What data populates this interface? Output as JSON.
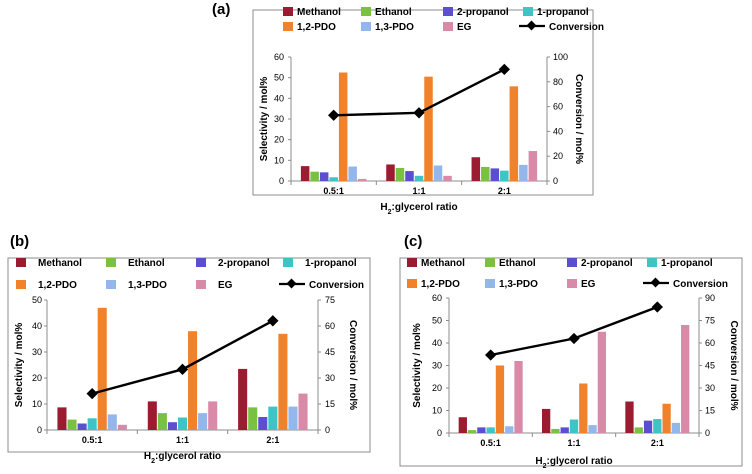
{
  "chart_data": [
    {
      "panel": "(a)",
      "type": "bar",
      "categories": [
        "0.5:1",
        "1:1",
        "2:1"
      ],
      "series": [
        {
          "name": "Methanol",
          "color": "#9b1b30",
          "values": [
            7.2,
            8.0,
            11.5
          ]
        },
        {
          "name": "Ethanol",
          "color": "#7ac142",
          "values": [
            4.5,
            6.3,
            6.8
          ]
        },
        {
          "name": "2-propanol",
          "color": "#5b4fcf",
          "values": [
            4.2,
            4.8,
            6.1
          ]
        },
        {
          "name": "1-propanol",
          "color": "#3ec4c4",
          "values": [
            1.8,
            2.5,
            5.0
          ]
        },
        {
          "name": "1,2-PDO",
          "color": "#f0822c",
          "values": [
            52.5,
            50.5,
            45.8
          ]
        },
        {
          "name": "1,3-PDO",
          "color": "#93b7ea",
          "values": [
            7.0,
            7.5,
            7.8
          ]
        },
        {
          "name": "EG",
          "color": "#d98aa8",
          "values": [
            1.0,
            2.5,
            14.5
          ]
        }
      ],
      "line": {
        "name": "Conversion",
        "axis": "right",
        "values": [
          53,
          55,
          90
        ]
      },
      "ylabel": "Selectivity / mol%",
      "y2label": "Conversion / mol%",
      "xlabel": "H2:glycerol ratio",
      "ylim": [
        0,
        60
      ],
      "y2lim": [
        0,
        100
      ],
      "yticks": [
        "0",
        "10",
        "20",
        "30",
        "40",
        "50",
        "60"
      ],
      "y2ticks": [
        "0",
        "20",
        "40",
        "60",
        "80",
        "100"
      ],
      "legend_position": "top"
    },
    {
      "panel": "(b)",
      "type": "bar",
      "categories": [
        "0.5:1",
        "1:1",
        "2:1"
      ],
      "series": [
        {
          "name": "Methanol",
          "color": "#9b1b30",
          "values": [
            8.7,
            11.0,
            23.5
          ]
        },
        {
          "name": "Ethanol",
          "color": "#7ac142",
          "values": [
            4.0,
            6.5,
            8.7
          ]
        },
        {
          "name": "2-propanol",
          "color": "#5b4fcf",
          "values": [
            2.5,
            3.0,
            5.0
          ]
        },
        {
          "name": "1-propanol",
          "color": "#3ec4c4",
          "values": [
            4.5,
            4.8,
            9.0
          ]
        },
        {
          "name": "1,2-PDO",
          "color": "#f0822c",
          "values": [
            47.0,
            38.0,
            37.0
          ]
        },
        {
          "name": "1,3-PDO",
          "color": "#93b7ea",
          "values": [
            6.0,
            6.5,
            9.0
          ]
        },
        {
          "name": "EG",
          "color": "#d98aa8",
          "values": [
            2.0,
            11.0,
            14.0
          ]
        }
      ],
      "line": {
        "name": "Conversion",
        "axis": "right",
        "values": [
          21,
          35,
          63
        ]
      },
      "ylabel": "Selectivity / mol%",
      "y2label": "Conversion / mol%",
      "xlabel": "H2:glycerol ratio",
      "ylim": [
        0,
        50
      ],
      "y2lim": [
        0,
        75
      ],
      "yticks": [
        "0",
        "10",
        "20",
        "30",
        "40",
        "50"
      ],
      "y2ticks": [
        "0",
        "15",
        "30",
        "45",
        "60",
        "75"
      ],
      "legend_position": "top"
    },
    {
      "panel": "(c)",
      "type": "bar",
      "categories": [
        "0.5:1",
        "1:1",
        "2:1"
      ],
      "series": [
        {
          "name": "Methanol",
          "color": "#9b1b30",
          "values": [
            7.0,
            10.7,
            14.0
          ]
        },
        {
          "name": "Ethanol",
          "color": "#7ac142",
          "values": [
            1.3,
            1.8,
            2.5
          ]
        },
        {
          "name": "2-propanol",
          "color": "#5b4fcf",
          "values": [
            2.5,
            2.5,
            5.5
          ]
        },
        {
          "name": "1-propanol",
          "color": "#3ec4c4",
          "values": [
            2.5,
            6.0,
            6.2
          ]
        },
        {
          "name": "1,2-PDO",
          "color": "#f0822c",
          "values": [
            30.0,
            22.0,
            13.0
          ]
        },
        {
          "name": "1,3-PDO",
          "color": "#93b7ea",
          "values": [
            3.0,
            3.5,
            4.5
          ]
        },
        {
          "name": "EG",
          "color": "#d98aa8",
          "values": [
            32.0,
            45.0,
            48.0
          ]
        }
      ],
      "line": {
        "name": "Conversion",
        "axis": "right",
        "values": [
          52,
          63,
          84
        ]
      },
      "ylabel": "Selectivity / mol%",
      "y2label": "Conversion / mol%",
      "xlabel": "H2:glycerol ratio",
      "ylim": [
        0,
        60
      ],
      "y2lim": [
        0,
        90
      ],
      "yticks": [
        "0",
        "10",
        "20",
        "30",
        "40",
        "50",
        "60"
      ],
      "y2ticks": [
        "0",
        "15",
        "30",
        "45",
        "60",
        "75",
        "90"
      ],
      "legend_position": "top"
    }
  ]
}
